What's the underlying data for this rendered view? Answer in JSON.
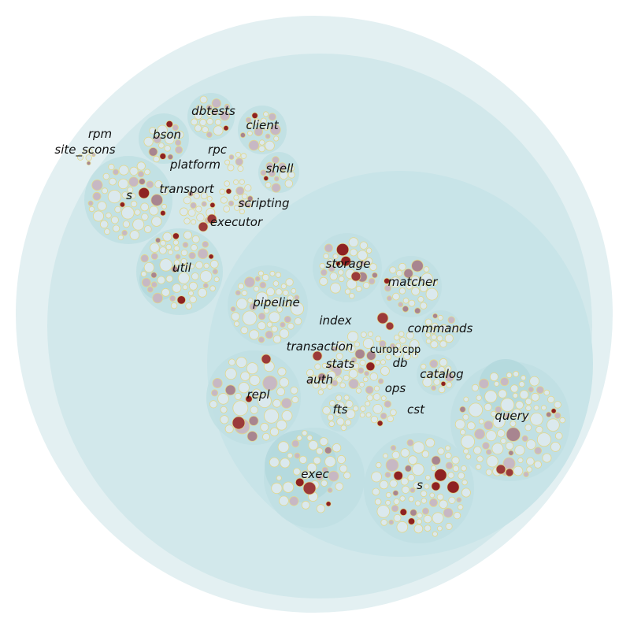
{
  "colors": {
    "outer": "#e3f0f2",
    "src": "#d2e8eb",
    "db": "#c8e4e8",
    "group": "#bfdfe3",
    "subgroup": "#b3d8dd",
    "leaf_light": "#dbe9ee",
    "leaf_stroke": "#e3d78a",
    "leaf_mid": "#c7b8c4",
    "leaf_dark": "#a88590",
    "hot": "#8e2222",
    "hot2": "#9b3a3a"
  },
  "labels": {
    "rpm": "rpm",
    "site_scons": "site_scons",
    "dbtests": "dbtests",
    "client": "client",
    "bson": "bson",
    "rpc": "rpc",
    "platform": "platform",
    "shell": "shell",
    "s_top": "s",
    "transport": "transport",
    "scripting": "scripting",
    "executor": "executor",
    "util": "util",
    "storage": "storage",
    "matcher": "matcher",
    "pipeline": "pipeline",
    "index": "index",
    "commands": "commands",
    "transaction": "transaction",
    "curop": "curop.cpp",
    "stats": "stats",
    "db": "db",
    "auth": "auth",
    "catalog": "catalog",
    "ops": "ops",
    "repl": "repl",
    "fts": "fts",
    "cst": "cst",
    "query": "query",
    "exec": "exec",
    "s_db": "s"
  }
}
